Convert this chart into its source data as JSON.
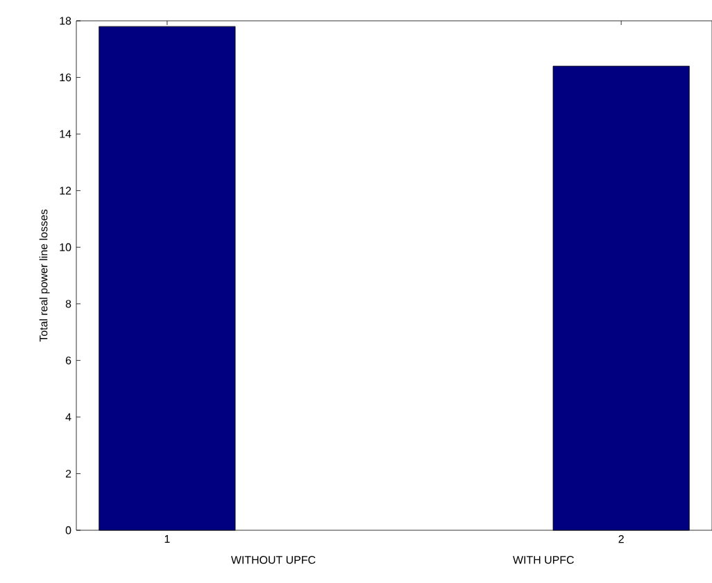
{
  "chart_data": {
    "type": "bar",
    "ylabel": "Total real power line losses",
    "x": [
      1,
      2
    ],
    "values": [
      17.8,
      16.4
    ],
    "color": "#000080",
    "xlim": [
      0.8,
      2.2
    ],
    "xticks": [
      1,
      2
    ],
    "ylim": [
      0,
      18
    ],
    "yticks": [
      0,
      2,
      4,
      6,
      8,
      10,
      12,
      14,
      16,
      18
    ],
    "annotations": [
      "WITHOUT UPFC",
      "WITH UPFC"
    ]
  }
}
